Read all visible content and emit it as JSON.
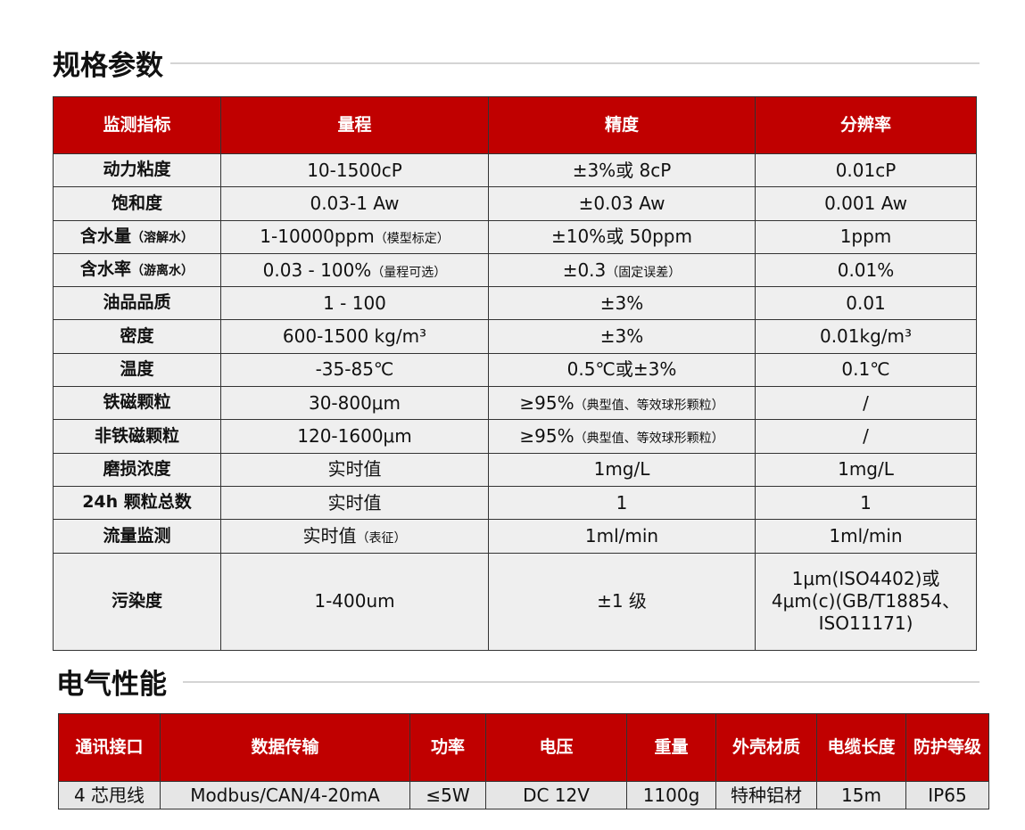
{
  "spec": {
    "title": "规格参数",
    "headers": [
      "监测指标",
      "量程",
      "精度",
      "分辨率"
    ],
    "rows": [
      {
        "name": "动力粘度",
        "name_note": "",
        "range": "10-1500cP",
        "range_note": "",
        "accuracy": "±3%或 8cP",
        "accuracy_note": "",
        "resolution": "0.01cP"
      },
      {
        "name": "饱和度",
        "name_note": "",
        "range": "0.03-1 Aw",
        "range_note": "",
        "accuracy": "±0.03 Aw",
        "accuracy_note": "",
        "resolution": "0.001 Aw"
      },
      {
        "name": "含水量",
        "name_note": "（溶解水）",
        "range": "1-10000ppm",
        "range_note": "（模型标定）",
        "accuracy": "±10%或 50ppm",
        "accuracy_note": "",
        "resolution": "1ppm"
      },
      {
        "name": "含水率",
        "name_note": "（游离水）",
        "range": "0.03 - 100%",
        "range_note": "（量程可选）",
        "accuracy": "±0.3",
        "accuracy_note": "（固定误差）",
        "resolution": "0.01%"
      },
      {
        "name": "油品品质",
        "name_note": "",
        "range": "1 - 100",
        "range_note": "",
        "accuracy": "±3%",
        "accuracy_note": "",
        "resolution": "0.01"
      },
      {
        "name": "密度",
        "name_note": "",
        "range": "600-1500 kg/m³",
        "range_note": "",
        "accuracy": "±3%",
        "accuracy_note": "",
        "resolution": "0.01kg/m³"
      },
      {
        "name": "温度",
        "name_note": "",
        "range": "-35-85℃",
        "range_note": "",
        "accuracy": "0.5℃或±3%",
        "accuracy_note": "",
        "resolution": "0.1℃"
      },
      {
        "name": "铁磁颗粒",
        "name_note": "",
        "range": "30-800μm",
        "range_note": "",
        "accuracy": "≥95%",
        "accuracy_note": "（典型值、等效球形颗粒）",
        "resolution": "/"
      },
      {
        "name": "非铁磁颗粒",
        "name_note": "",
        "range": "120-1600μm",
        "range_note": "",
        "accuracy": "≥95%",
        "accuracy_note": "（典型值、等效球形颗粒）",
        "resolution": "/"
      },
      {
        "name": "磨损浓度",
        "name_note": "",
        "range": "实时值",
        "range_note": "",
        "accuracy": "1mg/L",
        "accuracy_note": "",
        "resolution": "1mg/L"
      },
      {
        "name": "24h 颗粒总数",
        "name_note": "",
        "range": "实时值",
        "range_note": "",
        "accuracy": "1",
        "accuracy_note": "",
        "resolution": "1"
      },
      {
        "name": "流量监测",
        "name_note": "",
        "range": "实时值",
        "range_note": "（表征）",
        "accuracy": "1ml/min",
        "accuracy_note": "",
        "resolution": "1ml/min"
      },
      {
        "name": "污染度",
        "name_note": "",
        "range": "1-400um",
        "range_note": "",
        "accuracy": "±1 级",
        "accuracy_note": "",
        "resolution": "1μm(ISO4402)或 4μm(c)(GB/T18854、ISO11171)"
      }
    ]
  },
  "electrical": {
    "title": "电气性能",
    "headers": [
      "通讯接口",
      "数据传输",
      "功率",
      "电压",
      "重量",
      "外壳材质",
      "电缆长度",
      "防护等级"
    ],
    "values": [
      "4 芯甩线",
      "Modbus/CAN/4-20mA",
      "≤5W",
      "DC 12V",
      "1100g",
      "特种铝材",
      "15m",
      "IP65"
    ]
  },
  "colors": {
    "header": "#c00000",
    "cell": "#efefef"
  }
}
